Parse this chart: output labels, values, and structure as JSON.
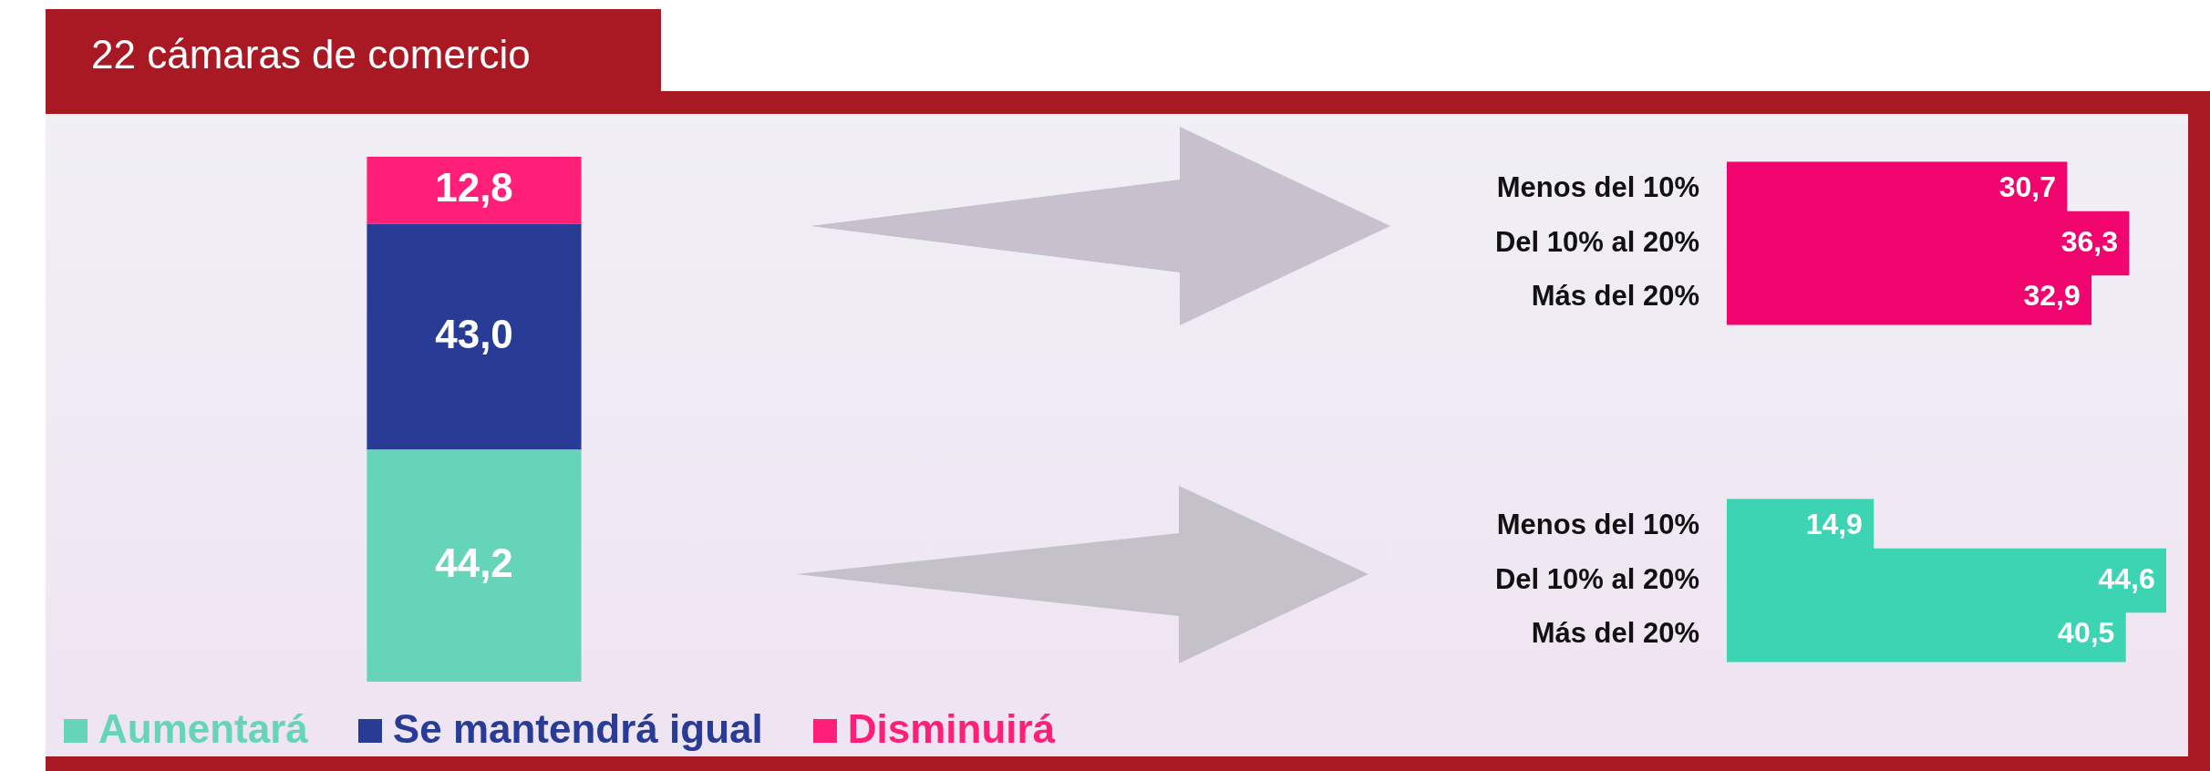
{
  "chart_data": [
    {
      "type": "bar",
      "title": "22 cámaras de comercio",
      "categories": [
        null
      ],
      "stacked": true,
      "ylim": [
        0,
        100
      ],
      "tick_labels": false,
      "legend": "bottom",
      "series": [
        {
          "name": "Aumentará",
          "color": "#66d4b8",
          "values": [
            44.2
          ],
          "value_labels": [
            "44,2"
          ]
        },
        {
          "name": "Se mantendrá igual",
          "color": "#283c96",
          "values": [
            43.0
          ],
          "value_labels": [
            "43,0"
          ]
        },
        {
          "name": "Disminuirá",
          "color": "#ff1f78",
          "values": [
            12.8
          ],
          "value_labels": [
            "12,8"
          ]
        }
      ]
    },
    {
      "type": "bar",
      "orientation": "horizontal",
      "categories": [
        "Menos del 10%",
        "Del 10% al 20%",
        "Más del 20%"
      ],
      "values": [
        30.7,
        36.3,
        32.9
      ],
      "value_labels": [
        "30,7",
        "36,3",
        "32,9"
      ],
      "color": "#f0056e",
      "tick_labels": "y"
    },
    {
      "type": "bar",
      "orientation": "horizontal",
      "categories": [
        "Menos del 10%",
        "Del 10% al 20%",
        "Más del 20%"
      ],
      "values": [
        14.9,
        44.6,
        40.5
      ],
      "value_labels": [
        "14,9",
        "44,6",
        "40,5"
      ],
      "color": "#3dd4b4",
      "tick_labels": "y"
    }
  ]
}
